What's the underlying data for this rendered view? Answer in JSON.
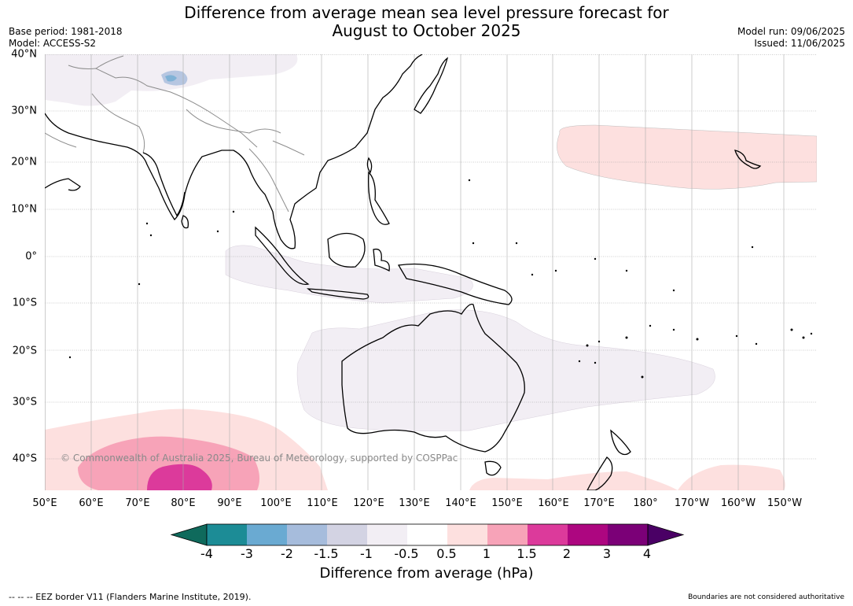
{
  "title": {
    "line1": "Difference from average mean sea level pressure forecast for",
    "line2": "August to October 2025"
  },
  "meta_left": {
    "base_period": "Base period: 1981-2018",
    "model": "Model: ACCESS-S2"
  },
  "meta_right": {
    "model_run": "Model run: 09/06/2025",
    "issued": "Issued: 11/06/2025"
  },
  "map": {
    "lat_labels": [
      "40°N",
      "30°N",
      "20°N",
      "10°N",
      "0°",
      "10°S",
      "20°S",
      "30°S",
      "40°S"
    ],
    "lon_labels": [
      "50°E",
      "60°E",
      "70°E",
      "80°E",
      "90°E",
      "100°E",
      "110°E",
      "120°E",
      "130°E",
      "140°E",
      "150°E",
      "160°E",
      "170°E",
      "180°",
      "170°W",
      "160°W",
      "150°W"
    ],
    "copyright": "© Commonwealth of Australia 2025, Bureau of Meteorology, supported by COSPPac",
    "anomaly_regions": [
      {
        "name": "north-pacific-high",
        "category": "0.5 to 1"
      },
      {
        "name": "southern-ocean-west",
        "category": "0.5 to 1"
      },
      {
        "name": "southern-ocean-core",
        "category": "1 to 1.5"
      },
      {
        "name": "southern-ocean-center",
        "category": "1.5 to 2"
      },
      {
        "name": "southern-ocean-east",
        "category": "0.5 to 1"
      },
      {
        "name": "australia-region",
        "category": "-1 to -0.5"
      },
      {
        "name": "maritime-continent",
        "category": "-1 to -0.5"
      },
      {
        "name": "central-asia",
        "category": "-1 to -0.5"
      },
      {
        "name": "tibet-patch",
        "category": "-4 to -1"
      }
    ]
  },
  "colorbar": {
    "title": "Difference from average (hPa)",
    "labels": [
      "-4",
      "-3",
      "-2",
      "-1.5",
      "-1",
      "-0.5",
      "0.5",
      "1",
      "1.5",
      "2",
      "3",
      "4"
    ],
    "colors": [
      "#1c8c96",
      "#6aaad2",
      "#a6bcdc",
      "#d3d3e3",
      "#f2eef4",
      "#ffffff",
      "#fde0df",
      "#f7a3b8",
      "#dc3a9b",
      "#ad0680",
      "#7b0077"
    ],
    "under_color": "#0f6a5c",
    "over_color": "#4a0065"
  },
  "footer": {
    "left": "--  --  -- EEZ border V11 (Flanders Marine Institute, 2019).",
    "right": "Boundaries are not considered authoritative"
  }
}
